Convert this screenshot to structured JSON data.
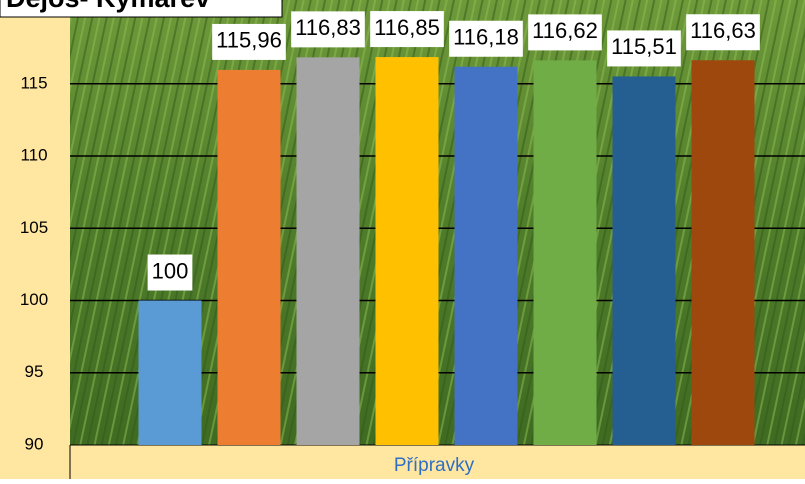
{
  "chart_data": {
    "type": "bar",
    "title": "Dejos- Kymarev",
    "x_label": "Přípravky",
    "categories": [
      "Přípravky"
    ],
    "series": [
      {
        "color": "#5b9bd5",
        "values": [
          100
        ],
        "value_labels": [
          "100"
        ]
      },
      {
        "color": "#ed7d31",
        "values": [
          115.96
        ],
        "value_labels": [
          "115,96"
        ]
      },
      {
        "color": "#a5a5a5",
        "values": [
          116.83
        ],
        "value_labels": [
          "116,83"
        ]
      },
      {
        "color": "#ffc000",
        "values": [
          116.85
        ],
        "value_labels": [
          "116,85"
        ]
      },
      {
        "color": "#4472c4",
        "values": [
          116.18
        ],
        "value_labels": [
          "116,18"
        ]
      },
      {
        "color": "#70ad47",
        "values": [
          116.62
        ],
        "value_labels": [
          "116,62"
        ]
      },
      {
        "color": "#255e91",
        "values": [
          115.51
        ],
        "value_labels": [
          "115,51"
        ]
      },
      {
        "color": "#9e480e",
        "values": [
          116.63
        ],
        "value_labels": [
          "116,63"
        ]
      }
    ],
    "ylim": [
      90,
      120.8
    ],
    "yticks": [
      90,
      95,
      100,
      105,
      110,
      115
    ],
    "grid": true
  }
}
